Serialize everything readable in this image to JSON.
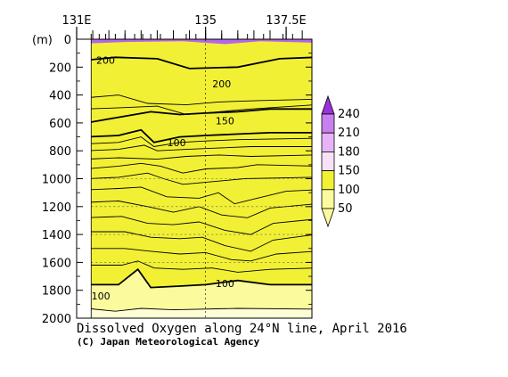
{
  "chart_data": {
    "type": "contour",
    "title": "Dissolved Oxygen along 24°N line, April 2016",
    "credit": "(C) Japan Meteorological Agency",
    "y_unit_label": "(m)",
    "x_axis": {
      "ticks": [
        {
          "value": 131,
          "label": "131E"
        },
        {
          "value": 135,
          "label": "135"
        },
        {
          "value": 137.5,
          "label": "137.5E"
        }
      ],
      "range": [
        131,
        138.3
      ],
      "station_longitudes": [
        131.45,
        131.7,
        131.9,
        132.2,
        132.5,
        132.8,
        133.05,
        133.3,
        133.6,
        134.0,
        134.4,
        134.7,
        135.0,
        135.5,
        136.0,
        136.3,
        136.8,
        137.0,
        137.4,
        137.7
      ]
    },
    "y_axis": {
      "label": "(m)",
      "ticks": [
        0,
        200,
        400,
        600,
        800,
        1000,
        1200,
        1400,
        1600,
        1800,
        2000
      ],
      "range": [
        0,
        2000
      ],
      "inverted": true
    },
    "colorbar": {
      "labels": [
        "240",
        "210",
        "180",
        "150",
        "100",
        "50"
      ],
      "colors": [
        "#9b30e0",
        "#c880ee",
        "#e6b4f6",
        "#f8e0f8",
        "#f2f034",
        "#fbfb9e"
      ]
    },
    "contour_labels": [
      {
        "text": "200",
        "lon": 131.9,
        "depth": 150
      },
      {
        "text": "200",
        "lon": 135.5,
        "depth": 320
      },
      {
        "text": "150",
        "lon": 135.6,
        "depth": 585
      },
      {
        "text": "100",
        "lon": 134.1,
        "depth": 740
      },
      {
        "text": "100",
        "lon": 131.75,
        "depth": 1840
      },
      {
        "text": "100",
        "lon": 135.6,
        "depth": 1750
      }
    ],
    "x_grid_lines": [
      {
        "lon": 135
      }
    ],
    "y_grid_lines": [
      1000,
      1200,
      1400,
      1600
    ]
  }
}
